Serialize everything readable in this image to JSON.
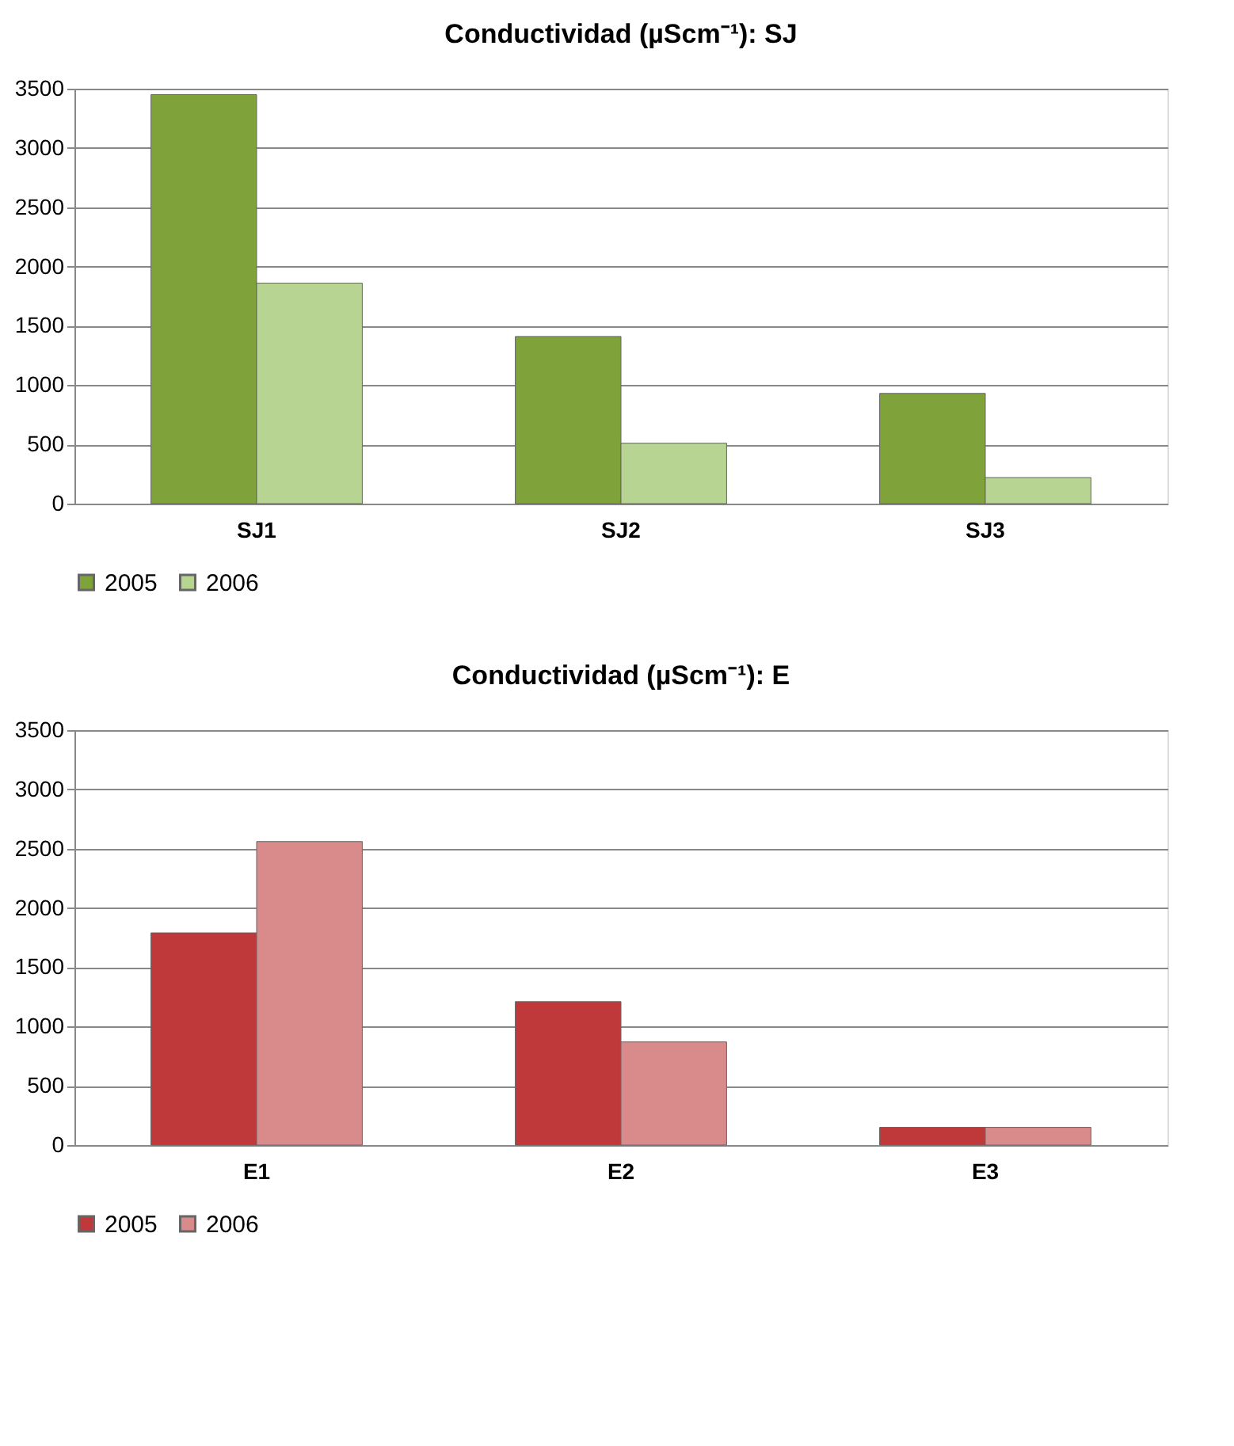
{
  "chart_data": [
    {
      "type": "bar",
      "title": "Conductividad (µScm⁻¹): SJ",
      "categories": [
        "SJ1",
        "SJ2",
        "SJ3"
      ],
      "series": [
        {
          "name": "2005",
          "color": "#7fa23a",
          "values": [
            3450,
            1410,
            930
          ]
        },
        {
          "name": "2006",
          "color": "#b8d492",
          "values": [
            1860,
            510,
            220
          ]
        }
      ],
      "ylim": [
        0,
        3500
      ],
      "yticks": [
        0,
        500,
        1000,
        1500,
        2000,
        2500,
        3000,
        3500
      ],
      "grid": "y",
      "legend": "bottom"
    },
    {
      "type": "bar",
      "title": "Conductividad (µScm⁻¹): E",
      "categories": [
        "E1",
        "E2",
        "E3"
      ],
      "series": [
        {
          "name": "2005",
          "color": "#c0393a",
          "values": [
            1790,
            1210,
            150
          ]
        },
        {
          "name": "2006",
          "color": "#d98a8a",
          "values": [
            2560,
            870,
            150
          ]
        }
      ],
      "ylim": [
        0,
        3500
      ],
      "yticks": [
        0,
        500,
        1000,
        1500,
        2000,
        2500,
        3000,
        3500
      ],
      "grid": "y",
      "legend": "bottom"
    }
  ]
}
